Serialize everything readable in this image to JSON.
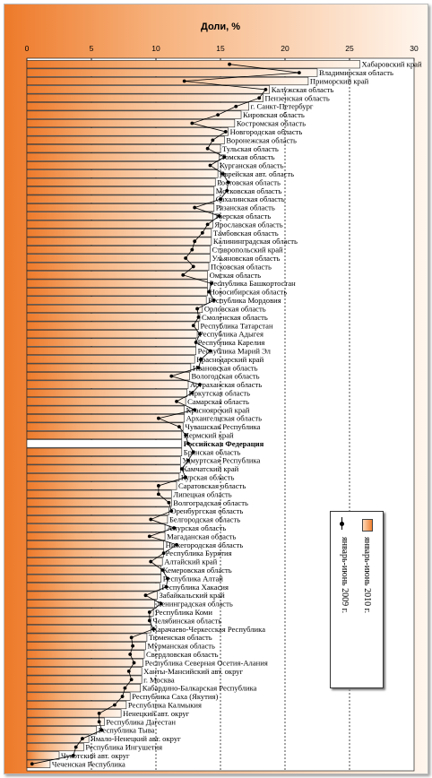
{
  "chart_data": {
    "type": "bar",
    "title": "Доли, %",
    "xlim": [
      0,
      30
    ],
    "x_ticks": [
      0,
      5,
      10,
      15,
      20,
      25,
      30
    ],
    "series": [
      {
        "name": "январь-июнь 2010 г.",
        "style": "bar"
      },
      {
        "name": "январь-июнь 2009 г.",
        "style": "line"
      }
    ],
    "highlight_category": "Российская Федерация",
    "categories": [
      "Хабаровский край",
      "Владимирская область",
      "Приморский край",
      "Калужская область",
      "Пензенская область",
      "г. Санкт-Петербург",
      "Кировская область",
      "Костромская область",
      "Новгородская область",
      "Воронежская область",
      "Тульская область",
      "Томская область",
      "Курганская область",
      "Еврейская авт. область",
      "Ростовская область",
      "Московская область",
      "Сахалинская область",
      "Рязанская область",
      "Тверская область",
      "Ярославская область",
      "Тамбовская область",
      "Калининградская область",
      "Ставропольский край",
      "Ульяновская область",
      "Псковская область",
      "Омская область",
      "Республика Башкортостан",
      "Новосибирская область",
      "Республика Мордовия",
      "Орловская область",
      "Смоленская область",
      "Республика Татарстан",
      "Республика Адыгея",
      "Республика Карелия",
      "Республика Марий Эл",
      "Краснодарский край",
      "Ивановская область",
      "Вологодская область",
      "Астраханская область",
      "Иркутская область",
      "Самарская область",
      "Красноярский край",
      "Архангельская область",
      "Чувашская Республика",
      "Пермский край",
      "Российская Федерация",
      "Брянская область",
      "Удмуртская Республика",
      "Камчатский край",
      "Курская область",
      "Саратовская область",
      "Липецкая область",
      "Волгоградская область",
      "Оренбургская область",
      "Белгородская область",
      "Амурская область",
      "Магаданская область",
      "Нижегородская область",
      "Республика Бурятия",
      "Алтайский край",
      "Кемеровская область",
      "Республика Алтай",
      "Республика Хакасия",
      "Забайкальский край",
      "Ленинградская область",
      "Республика Коми",
      "Челябинская область",
      "Карачаево-Черкесская Республика",
      "Тюменская область",
      "Мурманская область",
      "Свердловская область",
      "Республика Северная Осетия-Алания",
      "Ханты-Мансийский авт. округ",
      "г. Москва",
      "Кабардино-Балкарская Республика",
      "Республика Саха (Якутия)",
      "Республика Калмыкия",
      "Ненецкий авт. округ",
      "Республика Дагестан",
      "Республика Тыва",
      "Ямало-Ненецкий авт. округ",
      "Республика Ингушетия",
      "Чукотский авт. округ",
      "Чеченская Республика"
    ],
    "values_2010": [
      25.8,
      22.5,
      21.8,
      18.8,
      18.3,
      17.2,
      16.6,
      16.1,
      15.6,
      15.3,
      15.0,
      14.9,
      14.8,
      14.8,
      14.6,
      14.5,
      14.5,
      14.5,
      14.4,
      14.4,
      14.3,
      14.3,
      14.2,
      14.2,
      14.1,
      14.0,
      14.0,
      14.0,
      13.9,
      13.6,
      13.4,
      13.3,
      13.2,
      13.1,
      13.1,
      13.0,
      12.7,
      12.6,
      12.5,
      12.4,
      12.3,
      12.2,
      12.2,
      12.1,
      12.0,
      12.0,
      12.0,
      11.9,
      11.9,
      11.8,
      11.6,
      11.2,
      11.2,
      11.0,
      10.9,
      10.7,
      10.7,
      10.6,
      10.6,
      10.5,
      10.4,
      10.4,
      10.3,
      10.1,
      9.9,
      9.8,
      9.6,
      9.6,
      9.3,
      9.2,
      9.1,
      9.0,
      8.9,
      8.9,
      8.8,
      8.0,
      7.7,
      7.3,
      6.0,
      5.4,
      4.8,
      4.4,
      2.5,
      1.8
    ],
    "values_2009": [
      15.7,
      21.1,
      12.2,
      18.5,
      18.0,
      16.2,
      14.8,
      12.8,
      15.4,
      14.4,
      14.0,
      15.3,
      14.2,
      15.2,
      15.6,
      15.5,
      15.0,
      13.0,
      14.9,
      14.0,
      13.6,
      13.0,
      12.8,
      12.3,
      12.9,
      12.1,
      14.3,
      14.1,
      14.5,
      13.2,
      13.3,
      12.9,
      13.4,
      13.1,
      14.2,
      13.5,
      13.3,
      11.2,
      13.4,
      12.8,
      11.6,
      13.0,
      10.2,
      11.8,
      12.3,
      12.5,
      12.9,
      12.5,
      12.0,
      12.3,
      10.2,
      10.2,
      11.0,
      11.2,
      9.6,
      11.4,
      9.5,
      11.6,
      10.6,
      9.6,
      10.5,
      10.9,
      10.8,
      9.2,
      10.4,
      9.5,
      9.5,
      9.8,
      8.1,
      8.2,
      8.0,
      8.3,
      7.9,
      8.1,
      7.6,
      7.4,
      6.8,
      5.6,
      5.6,
      5.8,
      4.3,
      3.8,
      3.6,
      0.4
    ]
  }
}
